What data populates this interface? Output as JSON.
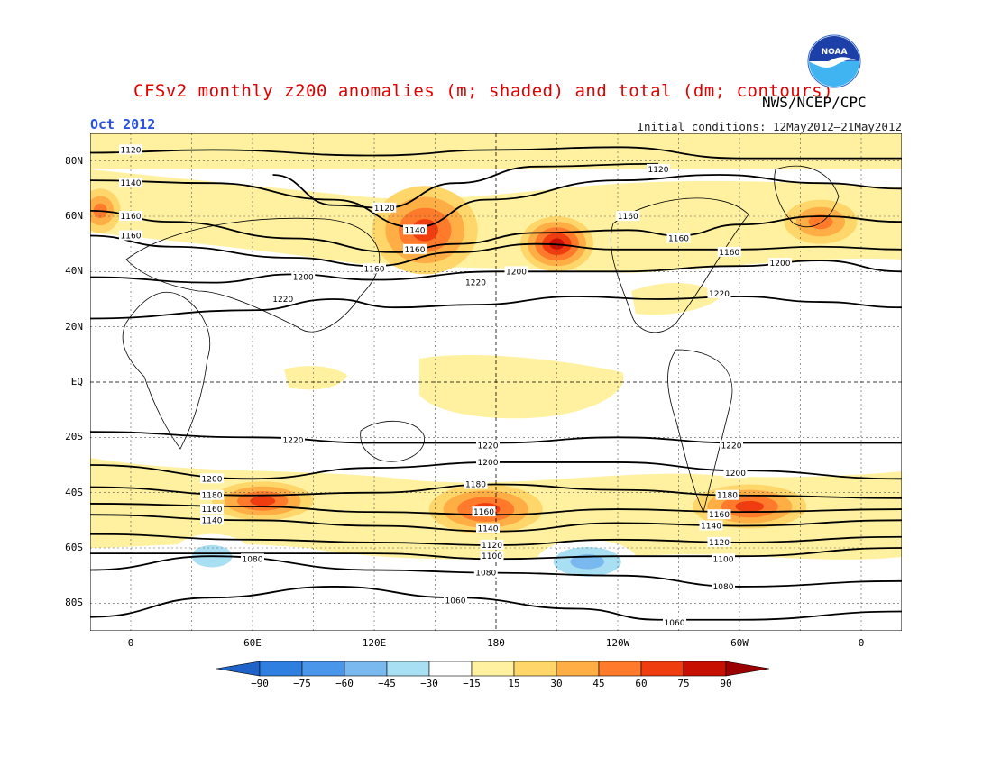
{
  "header": {
    "title": "CFSv2 monthly z200 anomalies (m; shaded) and total (dm; contours)",
    "agency": "NWS/NCEP/CPC",
    "month": "Oct 2012",
    "initial_conditions": "Initial conditions: 12May2012–21May2012"
  },
  "logo": {
    "text": "NOAA"
  },
  "map": {
    "lat_labels": [
      {
        "lat": 80,
        "label": "80N"
      },
      {
        "lat": 60,
        "label": "60N"
      },
      {
        "lat": 40,
        "label": "40N"
      },
      {
        "lat": 20,
        "label": "20N"
      },
      {
        "lat": 0,
        "label": "EQ"
      },
      {
        "lat": -20,
        "label": "20S"
      },
      {
        "lat": -40,
        "label": "40S"
      },
      {
        "lat": -60,
        "label": "60S"
      },
      {
        "lat": -80,
        "label": "80S"
      }
    ],
    "lon_labels": [
      {
        "lon": 0,
        "label": "0"
      },
      {
        "lon": 60,
        "label": "60E"
      },
      {
        "lon": 120,
        "label": "120E"
      },
      {
        "lon": 180,
        "label": "180"
      },
      {
        "lon": 240,
        "label": "120W"
      },
      {
        "lon": 300,
        "label": "60W"
      },
      {
        "lon": 360,
        "label": "0"
      }
    ],
    "lon_range": [
      -20,
      380
    ],
    "lat_range": [
      -90,
      90
    ],
    "contours": [
      {
        "value": "1120",
        "points": [
          [
            -20,
            83
          ],
          [
            40,
            84
          ],
          [
            120,
            82
          ],
          [
            180,
            84
          ],
          [
            240,
            85
          ],
          [
            300,
            81
          ],
          [
            380,
            81
          ]
        ],
        "labels": [
          [
            0,
            84
          ]
        ]
      },
      {
        "value": "1140",
        "points": [
          [
            -20,
            73
          ],
          [
            40,
            72
          ],
          [
            100,
            66
          ],
          [
            140,
            56
          ],
          [
            175,
            66
          ],
          [
            240,
            73
          ],
          [
            290,
            75
          ],
          [
            340,
            72
          ],
          [
            380,
            70
          ]
        ],
        "labels": [
          [
            0,
            72
          ],
          [
            140,
            55
          ]
        ]
      },
      {
        "value": "1120",
        "points": [
          [
            70,
            75
          ],
          [
            100,
            64
          ],
          [
            125,
            63
          ],
          [
            160,
            72
          ],
          [
            200,
            78
          ],
          [
            260,
            79
          ]
        ],
        "labels": [
          [
            125,
            63
          ],
          [
            260,
            77
          ]
        ]
      },
      {
        "value": "1160",
        "points": [
          [
            -20,
            62
          ],
          [
            20,
            58
          ],
          [
            80,
            52
          ],
          [
            130,
            47
          ],
          [
            160,
            50
          ],
          [
            200,
            54
          ],
          [
            245,
            55
          ],
          [
            270,
            53
          ],
          [
            300,
            57
          ],
          [
            340,
            60
          ],
          [
            380,
            58
          ]
        ],
        "labels": [
          [
            0,
            60
          ],
          [
            270,
            52
          ],
          [
            245,
            60
          ]
        ]
      },
      {
        "value": "1160",
        "points": [
          [
            -20,
            53
          ],
          [
            20,
            49
          ],
          [
            80,
            45
          ],
          [
            120,
            42
          ],
          [
            160,
            47
          ],
          [
            200,
            50
          ],
          [
            240,
            48
          ],
          [
            300,
            48
          ],
          [
            340,
            49
          ],
          [
            380,
            48
          ]
        ],
        "labels": [
          [
            0,
            53
          ],
          [
            140,
            48
          ],
          [
            295,
            47
          ],
          [
            120,
            41
          ]
        ]
      },
      {
        "value": "1200",
        "points": [
          [
            -20,
            38
          ],
          [
            40,
            36
          ],
          [
            80,
            39
          ],
          [
            120,
            37
          ],
          [
            180,
            40
          ],
          [
            240,
            40
          ],
          [
            300,
            42
          ],
          [
            340,
            44
          ],
          [
            380,
            40
          ]
        ],
        "labels": [
          [
            85,
            38
          ],
          [
            190,
            40
          ],
          [
            320,
            43
          ]
        ]
      },
      {
        "value": "1220",
        "points": [
          [
            -20,
            23
          ],
          [
            60,
            26
          ],
          [
            100,
            30
          ],
          [
            130,
            27
          ],
          [
            170,
            28
          ],
          [
            220,
            31
          ],
          [
            260,
            30
          ],
          [
            300,
            31
          ],
          [
            340,
            29
          ],
          [
            380,
            27
          ]
        ],
        "labels": [
          [
            75,
            30
          ],
          [
            170,
            36
          ],
          [
            290,
            32
          ]
        ]
      },
      {
        "value": "1220",
        "points": [
          [
            -20,
            -18
          ],
          [
            60,
            -20
          ],
          [
            120,
            -22
          ],
          [
            180,
            -22
          ],
          [
            240,
            -20
          ],
          [
            300,
            -22
          ],
          [
            380,
            -22
          ]
        ],
        "labels": [
          [
            80,
            -21
          ],
          [
            176,
            -23
          ],
          [
            296,
            -23
          ]
        ]
      },
      {
        "value": "1200",
        "points": [
          [
            -20,
            -30
          ],
          [
            60,
            -35
          ],
          [
            120,
            -31
          ],
          [
            180,
            -29
          ],
          [
            240,
            -29
          ],
          [
            300,
            -32
          ],
          [
            380,
            -35
          ]
        ],
        "labels": [
          [
            40,
            -35
          ],
          [
            176,
            -29
          ],
          [
            298,
            -33
          ]
        ]
      },
      {
        "value": "1180",
        "points": [
          [
            -20,
            -38
          ],
          [
            60,
            -41
          ],
          [
            120,
            -40
          ],
          [
            180,
            -37
          ],
          [
            240,
            -39
          ],
          [
            300,
            -41
          ],
          [
            380,
            -42
          ]
        ],
        "labels": [
          [
            40,
            -41
          ],
          [
            170,
            -37
          ],
          [
            294,
            -41
          ]
        ]
      },
      {
        "value": "1160",
        "points": [
          [
            -20,
            -44
          ],
          [
            60,
            -45
          ],
          [
            120,
            -47
          ],
          [
            180,
            -48
          ],
          [
            240,
            -46
          ],
          [
            300,
            -47
          ],
          [
            380,
            -46
          ]
        ],
        "labels": [
          [
            40,
            -46
          ],
          [
            174,
            -47
          ],
          [
            290,
            -48
          ]
        ]
      },
      {
        "value": "1140",
        "points": [
          [
            -20,
            -48
          ],
          [
            60,
            -50
          ],
          [
            120,
            -52
          ],
          [
            180,
            -54
          ],
          [
            240,
            -51
          ],
          [
            300,
            -52
          ],
          [
            380,
            -50
          ]
        ],
        "labels": [
          [
            40,
            -50
          ],
          [
            176,
            -53
          ],
          [
            286,
            -52
          ]
        ]
      },
      {
        "value": "1120",
        "points": [
          [
            -20,
            -55
          ],
          [
            60,
            -57
          ],
          [
            120,
            -58
          ],
          [
            180,
            -59
          ],
          [
            240,
            -57
          ],
          [
            300,
            -58
          ],
          [
            380,
            -56
          ]
        ],
        "labels": [
          [
            178,
            -59
          ],
          [
            290,
            -58
          ]
        ]
      },
      {
        "value": "1100",
        "points": [
          [
            -20,
            -62
          ],
          [
            40,
            -62
          ],
          [
            120,
            -62
          ],
          [
            180,
            -64
          ],
          [
            240,
            -63
          ],
          [
            300,
            -63
          ],
          [
            380,
            -60
          ]
        ],
        "labels": [
          [
            178,
            -63
          ],
          [
            292,
            -64
          ]
        ]
      },
      {
        "value": "1080",
        "points": [
          [
            -20,
            -68
          ],
          [
            40,
            -63
          ],
          [
            120,
            -68
          ],
          [
            180,
            -69
          ],
          [
            240,
            -70
          ],
          [
            300,
            -74
          ],
          [
            380,
            -72
          ]
        ],
        "labels": [
          [
            60,
            -64
          ],
          [
            175,
            -69
          ],
          [
            292,
            -74
          ]
        ]
      },
      {
        "value": "1060",
        "points": [
          [
            -20,
            -85
          ],
          [
            40,
            -78
          ],
          [
            100,
            -74
          ],
          [
            160,
            -78
          ],
          [
            220,
            -82
          ],
          [
            260,
            -86
          ],
          [
            300,
            -86
          ],
          [
            380,
            -83
          ]
        ],
        "labels": [
          [
            160,
            -79
          ],
          [
            268,
            -87
          ]
        ]
      }
    ],
    "anomaly_patches": [
      {
        "lon": 145,
        "lat": 55,
        "rx": 26,
        "ry": 16,
        "value": 60
      },
      {
        "lon": 210,
        "lat": 50,
        "rx": 18,
        "ry": 10,
        "value": 75
      },
      {
        "lon": 340,
        "lat": 58,
        "rx": 18,
        "ry": 8,
        "value": 45
      },
      {
        "lon": -15,
        "lat": 62,
        "rx": 10,
        "ry": 8,
        "value": 45
      },
      {
        "lon": 65,
        "lat": -43,
        "rx": 25,
        "ry": 7,
        "value": 60
      },
      {
        "lon": 175,
        "lat": -46,
        "rx": 28,
        "ry": 9,
        "value": 60
      },
      {
        "lon": 305,
        "lat": -45,
        "rx": 28,
        "ry": 8,
        "value": 60
      },
      {
        "lon": 225,
        "lat": -65,
        "rx": 25,
        "ry": 8,
        "value": -45
      },
      {
        "lon": 40,
        "lat": -63,
        "rx": 20,
        "ry": 8,
        "value": -30
      }
    ]
  },
  "colorbar": {
    "labels": [
      "−90",
      "−75",
      "−60",
      "−45",
      "−30",
      "−15",
      "15",
      "30",
      "45",
      "60",
      "75",
      "90"
    ],
    "colors": [
      "#1f63c9",
      "#2f7fe0",
      "#4a96ea",
      "#7ab8f0",
      "#a9dff2",
      "#ffffff",
      "#fff1a0",
      "#ffd66a",
      "#ffae45",
      "#ff7a2a",
      "#f03d10",
      "#c81000",
      "#9a0000"
    ]
  }
}
